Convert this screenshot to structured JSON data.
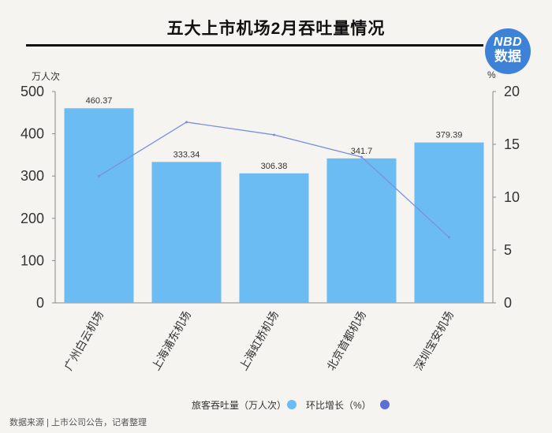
{
  "header": {
    "title": "五大上市机场2月吞吐量情况"
  },
  "logo": {
    "line1": "NBD",
    "line2": "数据"
  },
  "colors": {
    "bar": "#6bbcf3",
    "line": "#7b8fe0",
    "line_dot": "#5b6fd6",
    "logo": "#3e82d8"
  },
  "chart_data": {
    "type": "bar",
    "categories": [
      "广州白云机场",
      "上海浦东机场",
      "上海虹桥机场",
      "北京首都机场",
      "深圳宝安机场"
    ],
    "series": [
      {
        "name": "旅客吞吐量（万人次）",
        "type": "bar",
        "axis": "left",
        "values": [
          460.37,
          333.34,
          306.38,
          341.7,
          379.39
        ],
        "value_labels": [
          "460.37",
          "333.34",
          "306.38",
          "341.7",
          "379.39"
        ]
      },
      {
        "name": "环比增长（%）",
        "type": "line",
        "axis": "right",
        "values": [
          12.0,
          17.1,
          15.9,
          13.8,
          6.2
        ]
      }
    ],
    "left_axis": {
      "unit": "万人次",
      "ylim": [
        0,
        500
      ],
      "ticks": [
        "0",
        "100",
        "200",
        "300",
        "400",
        "500"
      ]
    },
    "right_axis": {
      "unit": "%",
      "ylim": [
        0,
        20
      ],
      "ticks": [
        "0",
        "5",
        "10",
        "15",
        "20"
      ]
    },
    "legend_position": "bottom-center",
    "grid": false
  },
  "footer": {
    "source": "数据来源 | 上市公司公告，记者整理"
  }
}
